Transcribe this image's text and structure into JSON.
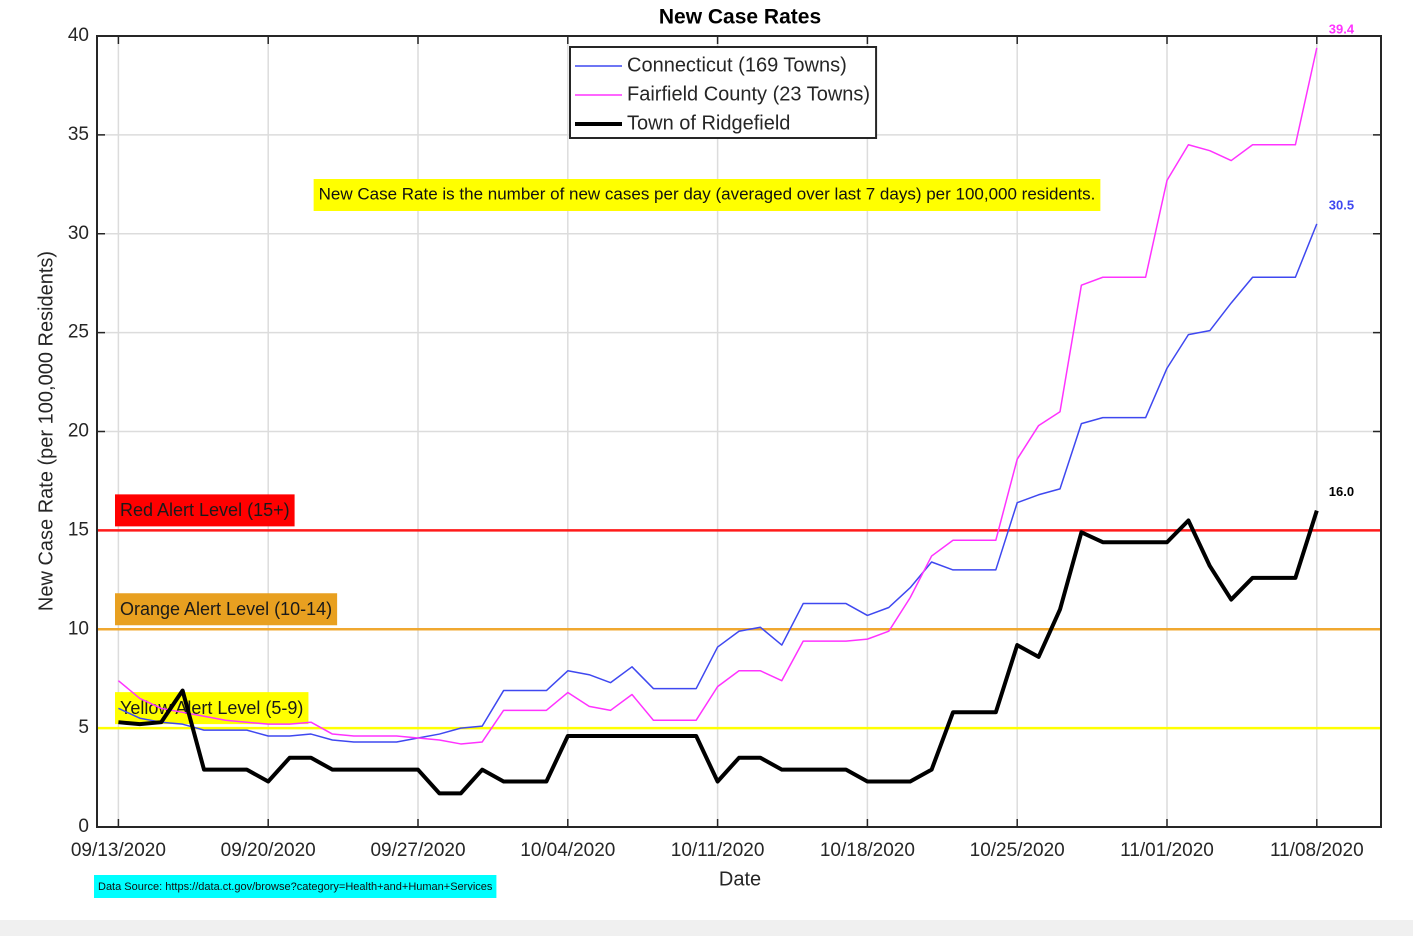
{
  "chart_data": {
    "type": "line",
    "title": "New Case Rates",
    "x_label": "Date",
    "y_label": "New Case Rate (per 100,000 Residents)",
    "x": [
      "09/13/2020",
      "09/14/2020",
      "09/15/2020",
      "09/16/2020",
      "09/17/2020",
      "09/18/2020",
      "09/19/2020",
      "09/20/2020",
      "09/21/2020",
      "09/22/2020",
      "09/23/2020",
      "09/24/2020",
      "09/25/2020",
      "09/26/2020",
      "09/27/2020",
      "09/28/2020",
      "09/29/2020",
      "09/30/2020",
      "10/01/2020",
      "10/02/2020",
      "10/03/2020",
      "10/04/2020",
      "10/05/2020",
      "10/06/2020",
      "10/07/2020",
      "10/08/2020",
      "10/09/2020",
      "10/10/2020",
      "10/11/2020",
      "10/12/2020",
      "10/13/2020",
      "10/14/2020",
      "10/15/2020",
      "10/16/2020",
      "10/17/2020",
      "10/18/2020",
      "10/19/2020",
      "10/20/2020",
      "10/21/2020",
      "10/22/2020",
      "10/23/2020",
      "10/24/2020",
      "10/25/2020",
      "10/26/2020",
      "10/27/2020",
      "10/28/2020",
      "10/29/2020",
      "10/30/2020",
      "10/31/2020",
      "11/01/2020",
      "11/02/2020",
      "11/03/2020",
      "11/04/2020",
      "11/05/2020",
      "11/06/2020",
      "11/07/2020",
      "11/08/2020"
    ],
    "series": [
      {
        "name": "Connecticut (169 Towns)",
        "color": "#3f48f0",
        "width": 1.5,
        "values": [
          6.0,
          5.5,
          5.3,
          5.2,
          4.9,
          4.9,
          4.9,
          4.6,
          4.6,
          4.7,
          4.4,
          4.3,
          4.3,
          4.3,
          4.5,
          4.7,
          5.0,
          5.1,
          6.9,
          6.9,
          6.9,
          7.9,
          7.7,
          7.3,
          8.1,
          7.0,
          7.0,
          7.0,
          9.1,
          9.9,
          10.1,
          9.2,
          11.3,
          11.3,
          11.3,
          10.7,
          11.1,
          12.1,
          13.4,
          13.0,
          13.0,
          13.0,
          16.4,
          16.8,
          17.1,
          20.4,
          20.7,
          20.7,
          20.7,
          23.2,
          24.9,
          25.1,
          26.5,
          27.8,
          27.8,
          27.8,
          30.5
        ],
        "value_labels": [
          null,
          null,
          null,
          null,
          null,
          null,
          null,
          null,
          null,
          null,
          null,
          null,
          null,
          null,
          null,
          null,
          null,
          null,
          null,
          null,
          null,
          null,
          null,
          null,
          null,
          null,
          null,
          null,
          null,
          null,
          null,
          null,
          null,
          null,
          null,
          null,
          null,
          null,
          null,
          null,
          null,
          null,
          null,
          null,
          null,
          null,
          null,
          null,
          null,
          null,
          null,
          null,
          null,
          null,
          null,
          null,
          "30.5"
        ]
      },
      {
        "name": "Fairfield County (23 Towns)",
        "color": "#ff33ff",
        "width": 1.5,
        "values": [
          7.4,
          6.5,
          6.0,
          5.8,
          5.6,
          5.4,
          5.3,
          5.2,
          5.2,
          5.3,
          4.7,
          4.6,
          4.6,
          4.6,
          4.5,
          4.4,
          4.2,
          4.3,
          5.9,
          5.9,
          5.9,
          6.8,
          6.1,
          5.9,
          6.7,
          5.4,
          5.4,
          5.4,
          7.1,
          7.9,
          7.9,
          7.4,
          9.4,
          9.4,
          9.4,
          9.5,
          9.9,
          11.6,
          13.7,
          14.5,
          14.5,
          14.5,
          18.6,
          20.3,
          21.0,
          27.4,
          27.8,
          27.8,
          27.8,
          32.7,
          34.5,
          34.2,
          33.7,
          34.5,
          34.5,
          34.5,
          39.4
        ],
        "value_labels": [
          null,
          null,
          null,
          null,
          null,
          null,
          null,
          null,
          null,
          null,
          null,
          null,
          null,
          null,
          null,
          null,
          null,
          null,
          null,
          null,
          null,
          null,
          null,
          null,
          null,
          null,
          null,
          null,
          null,
          null,
          null,
          null,
          null,
          null,
          null,
          null,
          null,
          null,
          null,
          null,
          null,
          null,
          null,
          null,
          null,
          null,
          null,
          null,
          null,
          null,
          null,
          null,
          null,
          null,
          null,
          null,
          "39.4"
        ]
      },
      {
        "name": "Town of Ridgefield",
        "color": "#000000",
        "width": 4,
        "values": [
          5.3,
          5.2,
          5.3,
          6.9,
          2.9,
          2.9,
          2.9,
          2.3,
          3.5,
          3.5,
          2.9,
          2.9,
          2.9,
          2.9,
          2.9,
          1.7,
          1.7,
          2.9,
          2.3,
          2.3,
          2.3,
          4.6,
          4.6,
          4.6,
          4.6,
          4.6,
          4.6,
          4.6,
          2.3,
          3.5,
          3.5,
          2.9,
          2.9,
          2.9,
          2.9,
          2.3,
          2.3,
          2.3,
          2.9,
          5.8,
          5.8,
          5.8,
          9.2,
          8.6,
          11.0,
          14.9,
          14.4,
          14.4,
          14.4,
          14.4,
          15.5,
          13.2,
          11.5,
          12.6,
          12.6,
          12.6,
          16.0
        ],
        "value_labels": [
          null,
          null,
          null,
          null,
          null,
          null,
          null,
          null,
          null,
          null,
          null,
          null,
          null,
          null,
          null,
          null,
          null,
          null,
          null,
          null,
          null,
          null,
          null,
          null,
          null,
          null,
          null,
          null,
          null,
          null,
          null,
          null,
          null,
          null,
          null,
          null,
          null,
          null,
          null,
          null,
          null,
          null,
          null,
          null,
          null,
          null,
          null,
          null,
          null,
          null,
          null,
          null,
          null,
          null,
          null,
          null,
          "16.0"
        ]
      }
    ],
    "xlim": [
      "09/12/2020",
      "11/11/2020"
    ],
    "xticks": [
      "09/13/2020",
      "09/20/2020",
      "09/27/2020",
      "10/04/2020",
      "10/11/2020",
      "10/18/2020",
      "10/25/2020",
      "11/01/2020",
      "11/08/2020"
    ],
    "ylim": [
      0,
      40
    ],
    "yticks": [
      0,
      5,
      10,
      15,
      20,
      25,
      30,
      35,
      40
    ],
    "grid": true,
    "legend": "top",
    "reference_lines": [
      {
        "value": 15,
        "label": "Red Alert Level (15+)",
        "color": "#ff1a1a",
        "box": "#ff0000"
      },
      {
        "value": 10,
        "label": "Orange Alert Level (10-14)",
        "color": "#f0a830",
        "box": "#e8a020"
      },
      {
        "value": 5,
        "label": "Yellow Alert Level (5-9)",
        "color": "#ffff00",
        "box": "#ffff00"
      }
    ],
    "annotation": "New Case Rate is the number of new cases per day (averaged over last 7 days) per 100,000 residents.",
    "annotation_color": "#ffff00",
    "source": "Data Source: https://data.ct.gov/browse?category=Health+and+Human+Services",
    "source_color": "#00ffff"
  }
}
